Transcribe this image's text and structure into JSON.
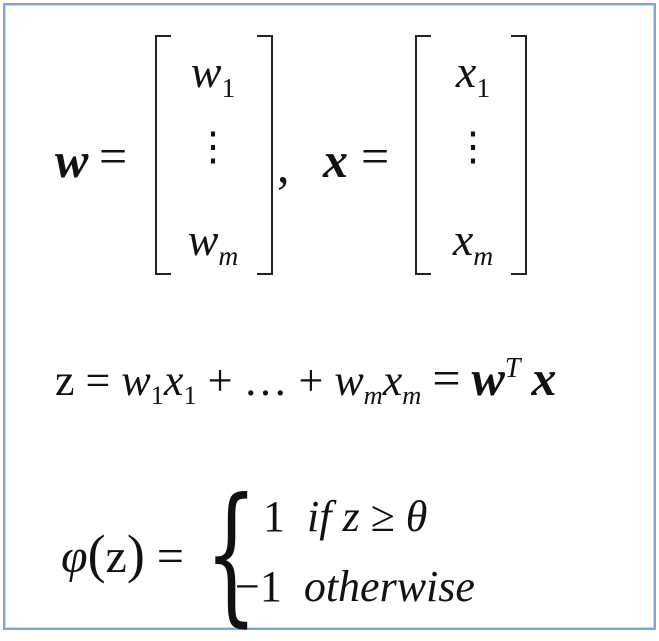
{
  "eq1": {
    "w_symbol": "w",
    "equals": "=",
    "w_first": "w",
    "w_first_sub": "1",
    "vdots": "⋮",
    "w_last": "w",
    "w_last_sub": "m",
    "comma": ",",
    "x_symbol": "x",
    "x_first": "x",
    "x_first_sub": "1",
    "x_last": "x",
    "x_last_sub": "m"
  },
  "eq2": {
    "lhs": "z",
    "equals": "=",
    "t1a": "w",
    "t1a_sub": "1",
    "t1b": "x",
    "t1b_sub": "1",
    "plus1": "+",
    "ellipsis": "…",
    "plus2": "+",
    "t2a": "w",
    "t2a_sub": "m",
    "t2b": "x",
    "t2b_sub": "m",
    "equals2": "=",
    "w_bold": "w",
    "w_sup": "T",
    "x_bold": "x"
  },
  "eq3": {
    "phi": "φ",
    "open_paren": "(",
    "arg": "z",
    "close_paren": ")",
    "equals": "=",
    "brace": "{",
    "case1_value": "1",
    "case1_cond_if": "if",
    "case1_cond_z": "z",
    "case1_cond_geq": "≥",
    "case1_cond_theta": "θ",
    "case2_value": "−1",
    "case2_cond": "otherwise"
  }
}
